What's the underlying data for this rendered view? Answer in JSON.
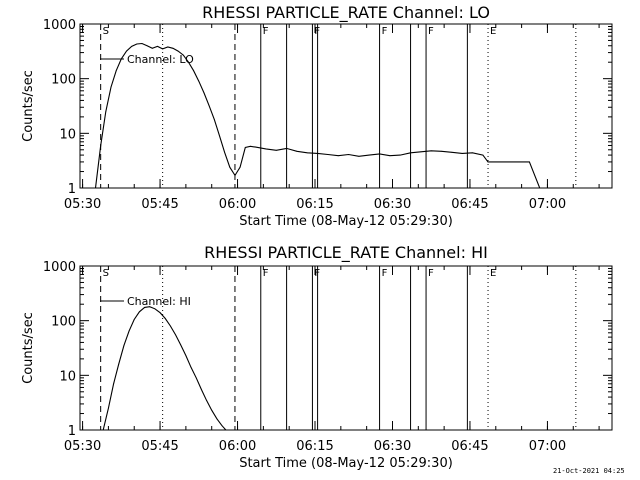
{
  "footer": {
    "timestamp": "21-Oct-2021 04:25"
  },
  "chart_data": [
    {
      "type": "line",
      "title": "RHESSI PARTICLE_RATE Channel: LO",
      "xlabel": "Start Time (08-May-12 05:29:30)",
      "ylabel": "Counts/sec",
      "xlim": [
        "05:29:30",
        "07:12:30"
      ],
      "ylim": [
        1,
        1000
      ],
      "yscale": "log",
      "xticks": [
        "05:30",
        "05:45",
        "06:00",
        "06:15",
        "06:30",
        "06:45",
        "07:00"
      ],
      "yticks": [
        "1",
        "10",
        "100",
        "1000"
      ],
      "legend": {
        "label": "Channel: LO",
        "placement": "top-left"
      },
      "markers": [
        {
          "time": "05:33:30",
          "label": "S",
          "style": "dashed"
        },
        {
          "time": "05:45:30",
          "label": "",
          "style": "dotted"
        },
        {
          "time": "05:59:30",
          "label": "",
          "style": "dashed"
        },
        {
          "time": "06:04:30",
          "label": "F",
          "style": "solid"
        },
        {
          "time": "06:09:30",
          "label": "",
          "style": "solid"
        },
        {
          "time": "06:14:30",
          "label": "F",
          "style": "solid"
        },
        {
          "time": "06:15:30",
          "label": "",
          "style": "solid"
        },
        {
          "time": "06:27:30",
          "label": "F",
          "style": "solid"
        },
        {
          "time": "06:33:30",
          "label": "",
          "style": "solid"
        },
        {
          "time": "06:36:30",
          "label": "F",
          "style": "solid"
        },
        {
          "time": "06:44:30",
          "label": "",
          "style": "solid"
        },
        {
          "time": "06:48:30",
          "label": "E",
          "style": "dotted"
        },
        {
          "time": "07:05:30",
          "label": "",
          "style": "dotted"
        }
      ],
      "series": [
        {
          "name": "Channel: LO",
          "x": [
            "05:32:30",
            "05:33:30",
            "05:34:30",
            "05:35:30",
            "05:36:30",
            "05:37:30",
            "05:38:30",
            "05:39:30",
            "05:40:30",
            "05:41:30",
            "05:42:30",
            "05:43:30",
            "05:44:30",
            "05:45:30",
            "05:46:30",
            "05:47:30",
            "05:48:30",
            "05:49:30",
            "05:50:30",
            "05:51:30",
            "05:52:30",
            "05:53:30",
            "05:54:30",
            "05:55:30",
            "05:56:30",
            "05:57:30",
            "05:58:30",
            "05:59:30",
            "06:00:30",
            "06:01:30",
            "06:02:30",
            "06:03:30",
            "06:05:30",
            "06:07:30",
            "06:09:30",
            "06:11:30",
            "06:13:30",
            "06:15:30",
            "06:17:30",
            "06:19:30",
            "06:21:30",
            "06:23:30",
            "06:25:30",
            "06:27:30",
            "06:29:30",
            "06:31:30",
            "06:33:30",
            "06:35:30",
            "06:37:30",
            "06:39:30",
            "06:41:30",
            "06:43:30",
            "06:45:30",
            "06:47:30",
            "06:48:30",
            "06:50:30",
            "06:52:30",
            "06:54:30",
            "06:56:30",
            "06:58:30",
            "07:00:30",
            "07:02:30",
            "07:04:30",
            "07:05:30"
          ],
          "y": [
            1,
            6,
            25,
            70,
            140,
            230,
            320,
            390,
            430,
            440,
            400,
            360,
            390,
            350,
            380,
            360,
            320,
            270,
            200,
            140,
            90,
            55,
            32,
            18,
            9,
            4.5,
            2.4,
            1.7,
            2.4,
            5.5,
            5.8,
            5.6,
            5.2,
            4.9,
            5.3,
            4.7,
            4.4,
            4.3,
            4.1,
            3.9,
            4.1,
            3.8,
            4.0,
            4.2,
            3.9,
            4.0,
            4.4,
            4.6,
            4.8,
            4.7,
            4.5,
            4.3,
            4.4,
            4.0,
            3.0,
            3.0,
            3.0,
            3.0,
            3.0,
            1.0,
            1.0,
            1.0,
            1.0,
            1.0
          ]
        }
      ]
    },
    {
      "type": "line",
      "title": "RHESSI PARTICLE_RATE Channel: HI",
      "xlabel": "Start Time (08-May-12 05:29:30)",
      "ylabel": "Counts/sec",
      "xlim": [
        "05:29:30",
        "07:12:30"
      ],
      "ylim": [
        1,
        1000
      ],
      "yscale": "log",
      "xticks": [
        "05:30",
        "05:45",
        "06:00",
        "06:15",
        "06:30",
        "06:45",
        "07:00"
      ],
      "yticks": [
        "1",
        "10",
        "100",
        "1000"
      ],
      "legend": {
        "label": "Channel: HI",
        "placement": "top-left"
      },
      "markers": [
        {
          "time": "05:33:30",
          "label": "S",
          "style": "dashed"
        },
        {
          "time": "05:45:30",
          "label": "",
          "style": "dotted"
        },
        {
          "time": "05:59:30",
          "label": "",
          "style": "dashed"
        },
        {
          "time": "06:04:30",
          "label": "F",
          "style": "solid"
        },
        {
          "time": "06:09:30",
          "label": "",
          "style": "solid"
        },
        {
          "time": "06:14:30",
          "label": "F",
          "style": "solid"
        },
        {
          "time": "06:15:30",
          "label": "",
          "style": "solid"
        },
        {
          "time": "06:27:30",
          "label": "F",
          "style": "solid"
        },
        {
          "time": "06:33:30",
          "label": "",
          "style": "solid"
        },
        {
          "time": "06:36:30",
          "label": "F",
          "style": "solid"
        },
        {
          "time": "06:44:30",
          "label": "",
          "style": "solid"
        },
        {
          "time": "06:48:30",
          "label": "E",
          "style": "dotted"
        },
        {
          "time": "07:05:30",
          "label": "",
          "style": "dotted"
        }
      ],
      "series": [
        {
          "name": "Channel: HI",
          "x": [
            "05:34:00",
            "05:35:00",
            "05:36:00",
            "05:37:00",
            "05:38:00",
            "05:39:00",
            "05:40:00",
            "05:41:00",
            "05:42:00",
            "05:43:00",
            "05:44:00",
            "05:45:00",
            "05:46:00",
            "05:47:00",
            "05:48:00",
            "05:49:00",
            "05:50:00",
            "05:51:00",
            "05:52:00",
            "05:53:00",
            "05:54:00",
            "05:55:00",
            "05:56:00",
            "05:57:00",
            "05:57:45"
          ],
          "y": [
            1,
            2.5,
            7,
            16,
            35,
            65,
            105,
            145,
            175,
            180,
            165,
            140,
            110,
            80,
            55,
            36,
            23,
            14,
            9,
            5.5,
            3.5,
            2.3,
            1.6,
            1.2,
            1
          ]
        }
      ]
    }
  ]
}
